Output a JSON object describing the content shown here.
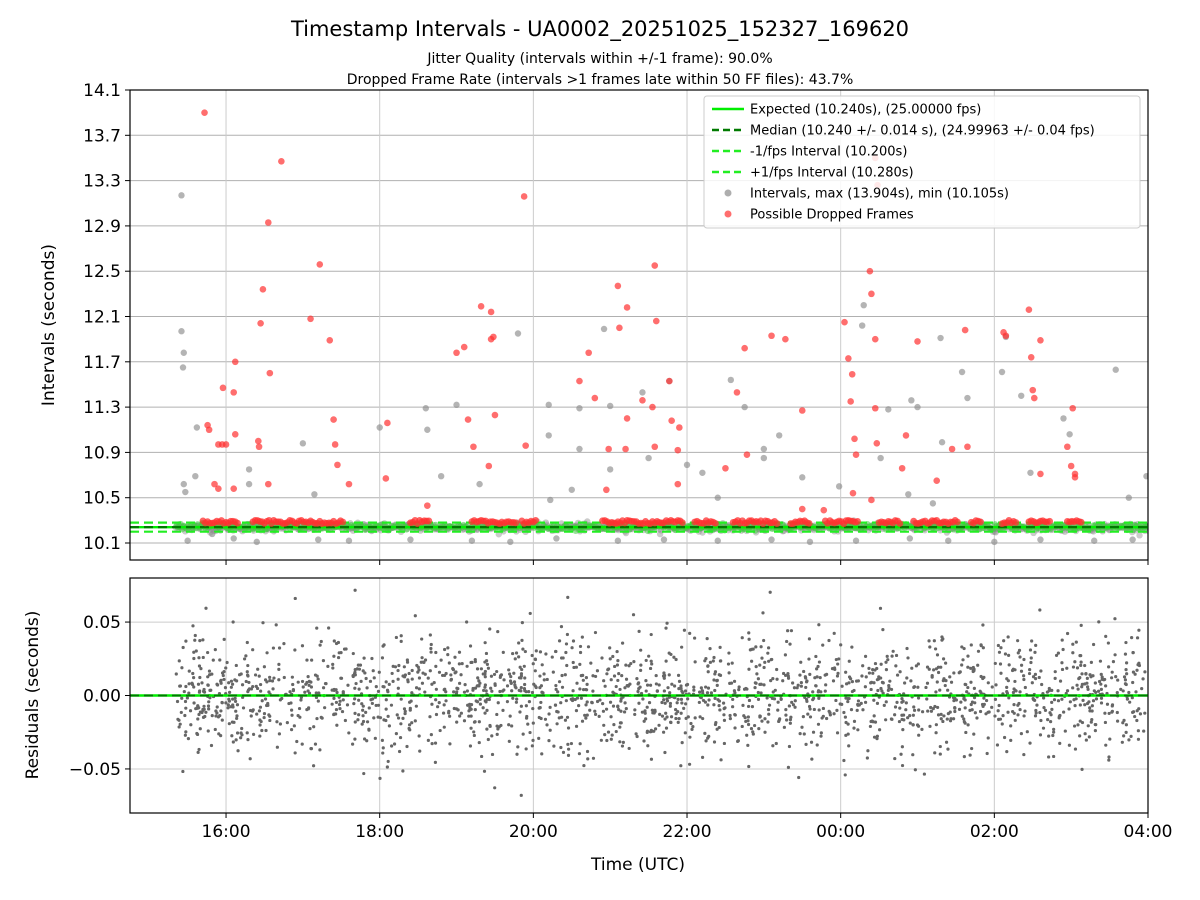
{
  "chart_data": {
    "type": "scatter",
    "title": "Timestamp Intervals - UA0002_20251025_152327_169620",
    "subtitle_lines": [
      "Jitter Quality (intervals within +/-1 frame): 90.0%",
      "Dropped Frame Rate (intervals >1 frames late within 50 FF files): 43.7%"
    ],
    "xlabel": "Time (UTC)",
    "xlim_hours": [
      14.75,
      28.0
    ],
    "x_ticks": [
      {
        "value": 16,
        "label": "16:00"
      },
      {
        "value": 18,
        "label": "18:00"
      },
      {
        "value": 20,
        "label": "20:00"
      },
      {
        "value": 22,
        "label": "22:00"
      },
      {
        "value": 24,
        "label": "00:00"
      },
      {
        "value": 26,
        "label": "02:00"
      },
      {
        "value": 28,
        "label": "04:00"
      }
    ],
    "top_panel": {
      "ylabel": "Intervals (seconds)",
      "ylim": [
        9.95,
        14.1
      ],
      "y_ticks": [
        "10.1",
        "10.5",
        "10.9",
        "11.3",
        "11.7",
        "12.1",
        "12.5",
        "12.9",
        "13.3",
        "13.7",
        "14.1"
      ],
      "expected": 10.24,
      "median": 10.24,
      "minus_one_frame": 10.2,
      "plus_one_frame": 10.28,
      "intervals_max": 13.904,
      "intervals_min": 10.105,
      "normal_band": [
        10.19,
        10.29
      ],
      "intervals_sample": [
        [
          15.42,
          13.17
        ],
        [
          15.42,
          11.97
        ],
        [
          15.45,
          11.78
        ],
        [
          15.44,
          11.65
        ],
        [
          15.45,
          10.62
        ],
        [
          15.47,
          10.55
        ],
        [
          15.6,
          10.69
        ],
        [
          15.62,
          11.12
        ],
        [
          15.82,
          10.18
        ],
        [
          16.3,
          10.62
        ],
        [
          16.3,
          10.75
        ],
        [
          17.0,
          10.98
        ],
        [
          17.15,
          10.53
        ],
        [
          18.0,
          11.12
        ],
        [
          18.6,
          11.29
        ],
        [
          18.62,
          11.1
        ],
        [
          18.8,
          10.69
        ],
        [
          19.3,
          10.62
        ],
        [
          19.0,
          11.32
        ],
        [
          19.8,
          11.95
        ],
        [
          20.2,
          11.05
        ],
        [
          20.2,
          11.32
        ],
        [
          20.22,
          10.48
        ],
        [
          20.5,
          10.57
        ],
        [
          20.6,
          11.29
        ],
        [
          20.6,
          10.93
        ],
        [
          20.92,
          11.99
        ],
        [
          21.0,
          10.75
        ],
        [
          21.0,
          11.31
        ],
        [
          21.42,
          11.43
        ],
        [
          21.77,
          11.53
        ],
        [
          21.5,
          10.85
        ],
        [
          22.0,
          10.79
        ],
        [
          22.2,
          10.72
        ],
        [
          22.4,
          10.5
        ],
        [
          22.57,
          11.54
        ],
        [
          22.75,
          11.3
        ],
        [
          23.0,
          10.93
        ],
        [
          23.0,
          10.85
        ],
        [
          23.2,
          11.05
        ],
        [
          23.5,
          10.68
        ],
        [
          23.98,
          10.6
        ],
        [
          24.28,
          12.02
        ],
        [
          24.3,
          12.2
        ],
        [
          24.52,
          10.85
        ],
        [
          24.62,
          11.28
        ],
        [
          24.88,
          10.53
        ],
        [
          24.92,
          11.36
        ],
        [
          25.0,
          11.3
        ],
        [
          25.2,
          10.45
        ],
        [
          25.32,
          10.99
        ],
        [
          25.3,
          11.91
        ],
        [
          25.58,
          11.61
        ],
        [
          25.65,
          11.38
        ],
        [
          26.1,
          11.61
        ],
        [
          26.15,
          11.92
        ],
        [
          26.35,
          11.4
        ],
        [
          26.47,
          10.72
        ],
        [
          26.9,
          11.2
        ],
        [
          26.98,
          11.06
        ],
        [
          27.58,
          11.63
        ],
        [
          27.75,
          10.5
        ],
        [
          27.98,
          10.69
        ],
        [
          15.5,
          10.12
        ],
        [
          16.1,
          10.14
        ],
        [
          16.4,
          10.11
        ],
        [
          17.2,
          10.13
        ],
        [
          17.6,
          10.12
        ],
        [
          18.4,
          10.13
        ],
        [
          19.2,
          10.12
        ],
        [
          19.7,
          10.11
        ],
        [
          20.3,
          10.14
        ],
        [
          21.1,
          10.12
        ],
        [
          21.7,
          10.13
        ],
        [
          22.4,
          10.12
        ],
        [
          23.1,
          10.13
        ],
        [
          23.6,
          10.11
        ],
        [
          24.2,
          10.12
        ],
        [
          24.9,
          10.14
        ],
        [
          25.4,
          10.12
        ],
        [
          26.0,
          10.11
        ],
        [
          26.6,
          10.13
        ],
        [
          27.3,
          10.12
        ],
        [
          27.8,
          10.13
        ]
      ],
      "dropped_sample": [
        [
          15.72,
          13.9
        ],
        [
          15.76,
          11.14
        ],
        [
          15.78,
          11.1
        ],
        [
          15.85,
          10.62
        ],
        [
          15.9,
          10.58
        ],
        [
          15.9,
          10.97
        ],
        [
          15.95,
          10.97
        ],
        [
          15.96,
          11.47
        ],
        [
          16.0,
          10.97
        ],
        [
          16.12,
          11.06
        ],
        [
          16.1,
          11.43
        ],
        [
          16.12,
          11.7
        ],
        [
          16.1,
          10.58
        ],
        [
          16.42,
          11.0
        ],
        [
          16.43,
          10.95
        ],
        [
          16.45,
          12.04
        ],
        [
          16.48,
          12.34
        ],
        [
          16.55,
          12.93
        ],
        [
          16.55,
          10.62
        ],
        [
          16.57,
          11.6
        ],
        [
          16.72,
          13.47
        ],
        [
          17.1,
          12.08
        ],
        [
          17.22,
          12.56
        ],
        [
          17.35,
          11.89
        ],
        [
          17.4,
          11.19
        ],
        [
          17.42,
          10.97
        ],
        [
          17.45,
          10.79
        ],
        [
          17.6,
          10.62
        ],
        [
          18.1,
          11.16
        ],
        [
          18.08,
          10.67
        ],
        [
          18.62,
          10.43
        ],
        [
          19.0,
          11.78
        ],
        [
          19.1,
          11.83
        ],
        [
          19.15,
          11.19
        ],
        [
          19.22,
          10.95
        ],
        [
          19.32,
          12.19
        ],
        [
          19.45,
          12.14
        ],
        [
          19.45,
          11.9
        ],
        [
          19.48,
          11.92
        ],
        [
          19.5,
          11.23
        ],
        [
          19.42,
          10.78
        ],
        [
          19.88,
          13.16
        ],
        [
          19.9,
          10.96
        ],
        [
          20.6,
          11.53
        ],
        [
          20.72,
          11.78
        ],
        [
          20.8,
          11.38
        ],
        [
          20.95,
          10.57
        ],
        [
          20.98,
          10.93
        ],
        [
          21.1,
          12.37
        ],
        [
          21.12,
          12.0
        ],
        [
          21.22,
          12.18
        ],
        [
          21.2,
          10.93
        ],
        [
          21.22,
          11.2
        ],
        [
          21.42,
          11.36
        ],
        [
          21.58,
          12.55
        ],
        [
          21.6,
          12.06
        ],
        [
          21.55,
          11.3
        ],
        [
          21.58,
          10.95
        ],
        [
          21.77,
          11.53
        ],
        [
          21.8,
          11.18
        ],
        [
          21.88,
          10.92
        ],
        [
          21.9,
          11.12
        ],
        [
          21.88,
          10.62
        ],
        [
          22.5,
          10.76
        ],
        [
          22.65,
          11.43
        ],
        [
          22.75,
          11.82
        ],
        [
          22.78,
          10.88
        ],
        [
          23.1,
          11.93
        ],
        [
          23.28,
          11.9
        ],
        [
          23.5,
          11.27
        ],
        [
          23.5,
          10.4
        ],
        [
          23.78,
          10.39
        ],
        [
          24.05,
          12.05
        ],
        [
          24.1,
          11.73
        ],
        [
          24.15,
          11.59
        ],
        [
          24.13,
          11.35
        ],
        [
          24.18,
          11.02
        ],
        [
          24.2,
          10.88
        ],
        [
          24.16,
          10.54
        ],
        [
          24.38,
          12.5
        ],
        [
          24.4,
          12.3
        ],
        [
          24.45,
          11.9
        ],
        [
          24.45,
          11.29
        ],
        [
          24.47,
          10.98
        ],
        [
          24.4,
          10.48
        ],
        [
          24.45,
          13.5
        ],
        [
          24.48,
          13.26
        ],
        [
          24.8,
          10.76
        ],
        [
          24.85,
          11.05
        ],
        [
          25.0,
          11.88
        ],
        [
          25.25,
          10.65
        ],
        [
          25.45,
          10.93
        ],
        [
          25.62,
          11.98
        ],
        [
          25.65,
          10.95
        ],
        [
          26.12,
          11.96
        ],
        [
          26.15,
          11.93
        ],
        [
          26.45,
          12.16
        ],
        [
          26.48,
          11.74
        ],
        [
          26.5,
          11.45
        ],
        [
          26.52,
          11.38
        ],
        [
          26.6,
          11.89
        ],
        [
          26.6,
          10.71
        ],
        [
          26.95,
          10.95
        ],
        [
          27.02,
          11.29
        ],
        [
          27.0,
          10.78
        ],
        [
          27.05,
          10.71
        ],
        [
          27.05,
          10.68
        ]
      ],
      "legend": [
        {
          "label": "Expected (10.240s), (25.00000 fps)",
          "style": "solid",
          "color": "#00ee00"
        },
        {
          "label": "Median (10.240 +/- 0.014 s), (24.99963 +/- 0.04 fps)",
          "style": "dashed",
          "color": "#007a00"
        },
        {
          "label": "-1/fps Interval (10.200s)",
          "style": "dashed",
          "color": "#22ee22"
        },
        {
          "label": "+1/fps Interval (10.280s)",
          "style": "dashed",
          "color": "#22ee22"
        },
        {
          "label": "Intervals, max (13.904s), min (10.105s)",
          "style": "dot",
          "color": "#8c8c8c"
        },
        {
          "label": "Possible Dropped Frames",
          "style": "dot",
          "color": "#ff3030"
        }
      ]
    },
    "bottom_panel": {
      "ylabel": "Residuals (seconds)",
      "ylim": [
        -0.08,
        0.08
      ],
      "y_ticks": [
        {
          "value": 0.05,
          "label": "0.05"
        },
        {
          "value": 0.0,
          "label": "0.00"
        },
        {
          "value": -0.05,
          "label": "−0.05"
        }
      ],
      "residual_std_approx": 0.02,
      "residual_x_range": [
        15.35,
        28.0
      ],
      "residual_count_approx": 2000
    },
    "colors": {
      "expected": "#00ee00",
      "median": "#007a00",
      "bounds": "#22ee22",
      "intervals": "#8c8c8c",
      "dropped": "#ff3030",
      "residuals": "#666666"
    }
  }
}
